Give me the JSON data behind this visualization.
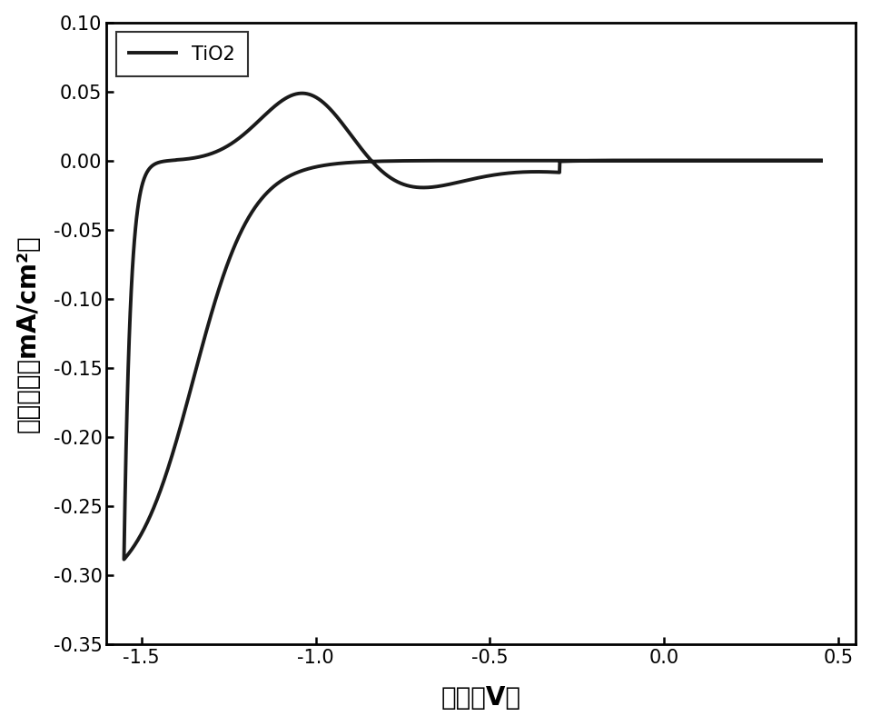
{
  "title": "",
  "xlabel": "电位（V）",
  "ylabel": "电流密度（mA/cm²）",
  "legend_label": "TiO2",
  "xlim": [
    -1.6,
    0.55
  ],
  "ylim": [
    -0.35,
    0.1
  ],
  "xticks": [
    -1.5,
    -1.0,
    -0.5,
    0.0,
    0.5
  ],
  "yticks": [
    -0.35,
    -0.3,
    -0.25,
    -0.2,
    -0.15,
    -0.1,
    -0.05,
    0.0,
    0.05,
    0.1
  ],
  "line_color": "#1a1a1a",
  "line_width": 2.8,
  "background_color": "#ffffff",
  "font_size_label": 20,
  "font_size_tick": 15,
  "font_size_legend": 15
}
